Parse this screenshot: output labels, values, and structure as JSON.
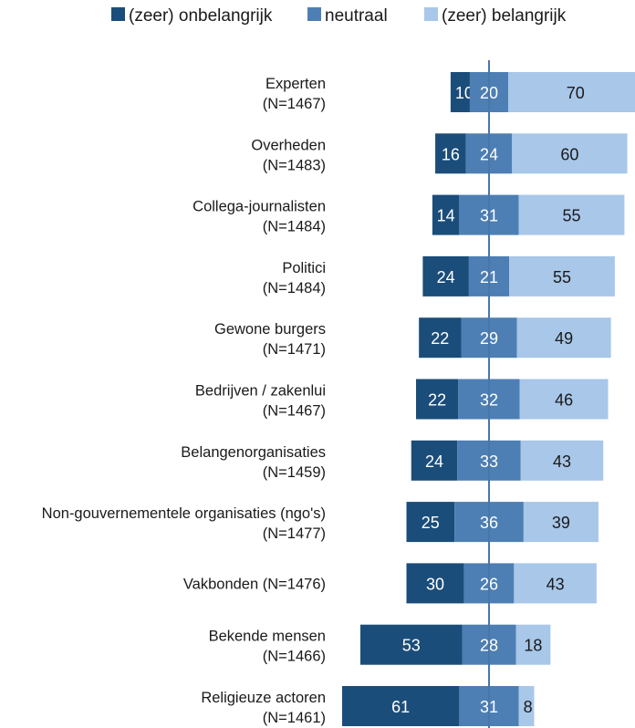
{
  "chart_data": {
    "type": "bar",
    "subtype": "diverging-stacked-horizontal",
    "unit": "%",
    "legend_position": "top",
    "colors": {
      "onbelangrijk": "#1b4d7a",
      "neutraal": "#4d7fb4",
      "belangrijk": "#a8c7e9",
      "axis": "#4a76aa"
    },
    "series": [
      {
        "name": "(zeer) onbelangrijk",
        "key": "onbelangrijk"
      },
      {
        "name": "neutraal",
        "key": "neutraal"
      },
      {
        "name": "(zeer) belangrijk",
        "key": "belangrijk"
      }
    ],
    "categories": [
      {
        "name": "Experten",
        "n": "(N=1467)",
        "values": [
          10,
          20,
          70
        ]
      },
      {
        "name": "Overheden",
        "n": "(N=1483)",
        "values": [
          16,
          24,
          60
        ]
      },
      {
        "name": "Collega-journalisten",
        "n": "(N=1484)",
        "values": [
          14,
          31,
          55
        ]
      },
      {
        "name": "Politici",
        "n": "(N=1484)",
        "values": [
          24,
          21,
          55
        ]
      },
      {
        "name": "Gewone burgers",
        "n": "(N=1471)",
        "values": [
          22,
          29,
          49
        ]
      },
      {
        "name": "Bedrijven / zakenlui",
        "n": "(N=1467)",
        "values": [
          22,
          32,
          46
        ]
      },
      {
        "name": "Belangenorganisaties",
        "n": "(N=1459)",
        "values": [
          24,
          33,
          43
        ]
      },
      {
        "name": "Non-gouvernementele organisaties (ngo's)",
        "n": "(N=1477)",
        "values": [
          25,
          36,
          39
        ]
      },
      {
        "name": "Vakbonden (N=1476)",
        "n": "",
        "values": [
          30,
          26,
          43
        ]
      },
      {
        "name": "Bekende mensen",
        "n": "(N=1466)",
        "values": [
          53,
          28,
          18
        ]
      },
      {
        "name": "Religieuze actoren",
        "n": "(N=1461)",
        "values": [
          61,
          31,
          8
        ]
      }
    ]
  }
}
